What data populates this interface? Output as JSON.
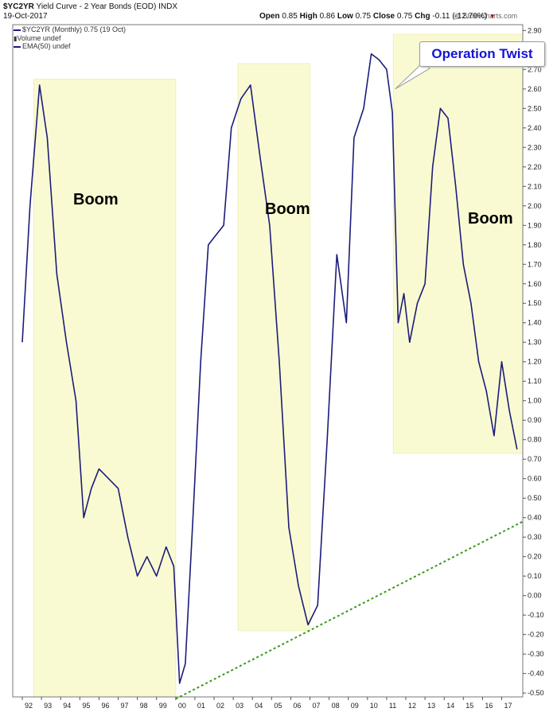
{
  "header": {
    "symbol": "$YC2YR",
    "title": "Yield Curve - 2 Year Bonds (EOD)",
    "exchange": "INDX",
    "date": "19-Oct-2017",
    "watermark": "@ StockCharts.com",
    "open_label": "Open",
    "open": "0.85",
    "high_label": "High",
    "high": "0.86",
    "low_label": "Low",
    "low": "0.75",
    "close_label": "Close",
    "close": "0.75",
    "chg_label": "Chg",
    "chg": "-0.11 (-12.79%)"
  },
  "legend": {
    "series": "$YC2YR (Monthly) 0.75 (19 Oct)",
    "volume": "Volume undef",
    "ema": "EMA(50) undef"
  },
  "annotations": {
    "boom1": "Boom",
    "boom2": "Boom",
    "boom3": "Boom",
    "operation_twist": "Operation Twist"
  },
  "colors": {
    "series": "#1c1c7a",
    "highlight": "#fafad2",
    "trendline": "#3a9a1a",
    "callout_text": "#1414d6"
  },
  "chart_data": {
    "type": "line",
    "title": "Yield Curve - 2 Year Bonds (EOD)",
    "xlabel": "",
    "ylabel": "",
    "ylim": [
      -0.52,
      2.93
    ],
    "xlim": [
      1991.5,
      2018.1
    ],
    "y_ticks": [
      "2.90",
      "2.80",
      "2.70",
      "2.60",
      "2.50",
      "2.40",
      "2.30",
      "2.20",
      "2.10",
      "2.00",
      "1.90",
      "1.80",
      "1.70",
      "1.60",
      "1.50",
      "1.40",
      "1.30",
      "1.20",
      "1.10",
      "1.00",
      "0.90",
      "0.80",
      "0.70",
      "0.60",
      "0.50",
      "0.40",
      "0.30",
      "0.20",
      "0.10",
      "0.00",
      "-0.10",
      "-0.20",
      "-0.30",
      "-0.40",
      "-0.50"
    ],
    "x_ticks": [
      "92",
      "93",
      "94",
      "95",
      "96",
      "97",
      "98",
      "99",
      "00",
      "01",
      "02",
      "03",
      "04",
      "05",
      "06",
      "07",
      "08",
      "09",
      "10",
      "11",
      "12",
      "13",
      "14",
      "15",
      "16",
      "17"
    ],
    "grid": false,
    "series": [
      {
        "name": "$YC2YR (Monthly)",
        "x": [
          1992.0,
          1992.4,
          1992.9,
          1993.3,
          1993.8,
          1994.3,
          1994.8,
          1995.2,
          1995.6,
          1996.0,
          1996.5,
          1997.0,
          1997.5,
          1998.0,
          1998.5,
          1999.0,
          1999.5,
          1999.9,
          2000.2,
          2000.5,
          2000.9,
          2001.3,
          2001.7,
          2002.1,
          2002.5,
          2002.9,
          2003.4,
          2003.9,
          2004.4,
          2004.9,
          2005.4,
          2005.9,
          2006.4,
          2006.9,
          2007.4,
          2007.9,
          2008.4,
          2008.9,
          2009.3,
          2009.8,
          2010.2,
          2010.6,
          2011.0,
          2011.3,
          2011.6,
          2011.9,
          2012.2,
          2012.6,
          2013.0,
          2013.4,
          2013.8,
          2014.2,
          2014.6,
          2015.0,
          2015.4,
          2015.8,
          2016.2,
          2016.6,
          2017.0,
          2017.4,
          2017.8
        ],
        "values": [
          1.3,
          2.0,
          2.62,
          2.35,
          1.65,
          1.3,
          1.0,
          0.4,
          0.55,
          0.65,
          0.6,
          0.55,
          0.3,
          0.1,
          0.2,
          0.1,
          0.25,
          0.15,
          -0.45,
          -0.35,
          0.4,
          1.2,
          1.8,
          1.85,
          1.9,
          2.4,
          2.55,
          2.62,
          2.25,
          1.9,
          1.2,
          0.35,
          0.05,
          -0.15,
          -0.05,
          0.8,
          1.75,
          1.4,
          2.35,
          2.5,
          2.78,
          2.75,
          2.7,
          2.48,
          1.4,
          1.55,
          1.3,
          1.5,
          1.6,
          2.2,
          2.5,
          2.45,
          2.1,
          1.7,
          1.5,
          1.2,
          1.05,
          0.82,
          1.2,
          0.95,
          0.75
        ]
      },
      {
        "name": "",
        "x": [
          2000.0,
          2018.1
        ],
        "values": [
          -0.53,
          0.38
        ]
      }
    ],
    "highlight_periods": [
      {
        "label": "Boom",
        "x_start": 1992.6,
        "x_end": 2000.0,
        "y_low": -0.52,
        "y_high": 2.65
      },
      {
        "label": "Boom",
        "x_start": 2003.25,
        "x_end": 2007.0,
        "y_low": -0.18,
        "y_high": 2.73
      },
      {
        "label": "Boom",
        "x_start": 2011.35,
        "x_end": 2018.1,
        "y_low": 0.73,
        "y_high": 2.88
      }
    ]
  }
}
